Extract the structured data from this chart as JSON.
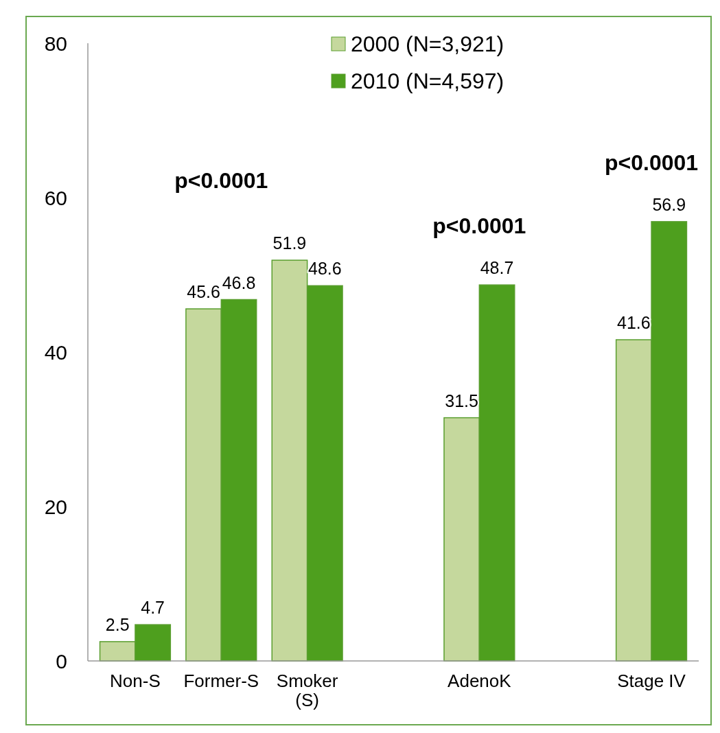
{
  "chart_data": {
    "type": "bar",
    "categories": [
      "Non-S",
      "Former-S",
      "Smoker (S)",
      null,
      "AdenoK",
      null,
      "Stage IV"
    ],
    "series": [
      {
        "name": "2000 (N=3,921)",
        "color": "#c5d89d",
        "values": [
          2.5,
          45.6,
          51.9,
          null,
          31.5,
          null,
          41.6
        ]
      },
      {
        "name": "2010 (N=4,597)",
        "color": "#4e9f1e",
        "values": [
          4.7,
          46.8,
          48.6,
          null,
          48.7,
          null,
          56.9
        ]
      }
    ],
    "ylim": [
      0,
      80
    ],
    "yticks": [
      0,
      20,
      40,
      60,
      80
    ],
    "grid": false,
    "legend": "top",
    "data_labels": true,
    "annotations": [
      "p<0.0001",
      "p<0.0001",
      "p<0.0001"
    ]
  }
}
